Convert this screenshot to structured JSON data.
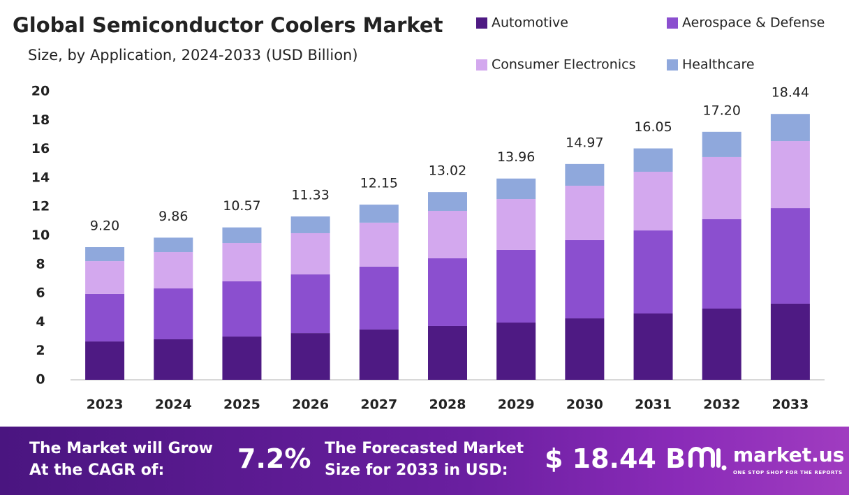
{
  "chart_data": {
    "type": "stacked_bar",
    "title": "Global Semiconductor Coolers Market",
    "subtitle": "Size, by Application, 2024-2033 (USD Billion)",
    "categories": [
      "2023",
      "2024",
      "2025",
      "2026",
      "2027",
      "2028",
      "2029",
      "2030",
      "2031",
      "2032",
      "2033"
    ],
    "series": [
      {
        "name": "Automotive",
        "color": "#4e1a83",
        "values": [
          2.66,
          2.81,
          3.0,
          3.24,
          3.49,
          3.73,
          3.97,
          4.26,
          4.6,
          4.94,
          5.28
        ]
      },
      {
        "name": "Aerospace & Defense",
        "color": "#8b4fcf",
        "values": [
          3.3,
          3.53,
          3.83,
          4.07,
          4.36,
          4.7,
          5.04,
          5.43,
          5.76,
          6.2,
          6.63
        ]
      },
      {
        "name": "Consumer Electronics",
        "color": "#d3a8ee",
        "values": [
          2.27,
          2.52,
          2.66,
          2.86,
          3.05,
          3.29,
          3.53,
          3.77,
          4.07,
          4.31,
          4.65
        ]
      },
      {
        "name": "Healthcare",
        "color": "#8fa8dc",
        "values": [
          0.97,
          1.0,
          1.08,
          1.16,
          1.25,
          1.3,
          1.42,
          1.51,
          1.62,
          1.75,
          1.88
        ]
      }
    ],
    "totals": [
      9.2,
      9.86,
      10.57,
      11.33,
      12.15,
      13.02,
      13.96,
      14.97,
      16.05,
      17.2,
      18.44
    ],
    "total_labels": [
      "9.20",
      "9.86",
      "10.57",
      "11.33",
      "12.15",
      "13.02",
      "13.96",
      "14.97",
      "16.05",
      "17.20",
      "18.44"
    ],
    "ylim": [
      0,
      20
    ],
    "yticks": [
      0,
      2,
      4,
      6,
      8,
      10,
      12,
      14,
      16,
      18,
      20
    ],
    "grid": false
  },
  "footer": {
    "cagr_caption": "The Market will Grow At the CAGR of:",
    "cagr_value": "7.2%",
    "forecast_caption": "The Forecasted Market Size for 2033 in USD:",
    "forecast_value": "$ 18.44 B",
    "logo": "market.us",
    "tagline": "ONE STOP SHOP FOR THE REPORTS"
  }
}
